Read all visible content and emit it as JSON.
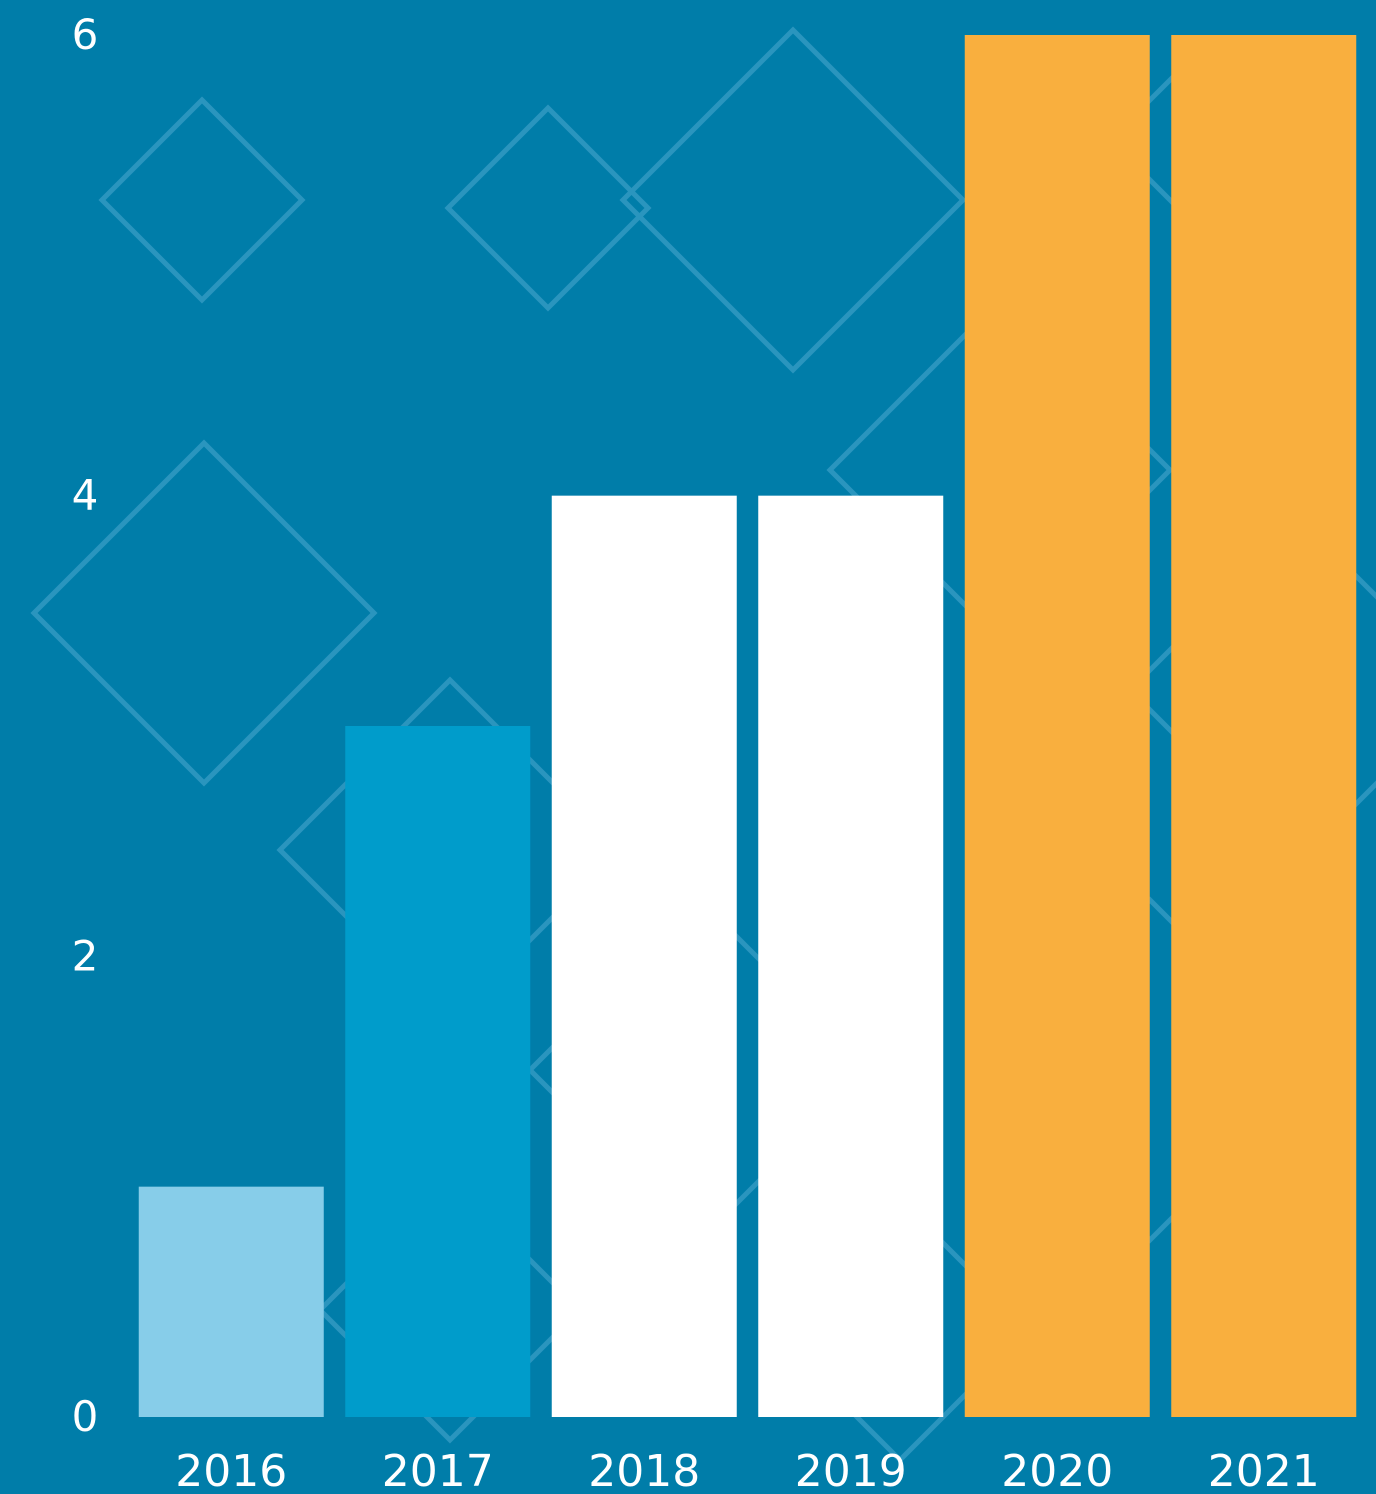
{
  "chart_data": {
    "type": "bar",
    "categories": [
      "2016",
      "2017",
      "2018",
      "2019",
      "2020",
      "2021"
    ],
    "values": [
      1,
      3,
      4,
      4,
      6,
      6
    ],
    "ylim": [
      0,
      6
    ],
    "yticks": [
      "0",
      "2",
      "4",
      "6"
    ],
    "title": "",
    "xlabel": "",
    "ylabel": "",
    "grid": false,
    "legend": "none"
  },
  "colors": {
    "background": "#007DA9",
    "pattern": "#2A95BE",
    "bars": [
      "#87CDE9",
      "#009CCB",
      "#FFFFFF",
      "#FFFFFF",
      "#F9AF3E",
      "#F9AF3E"
    ]
  }
}
